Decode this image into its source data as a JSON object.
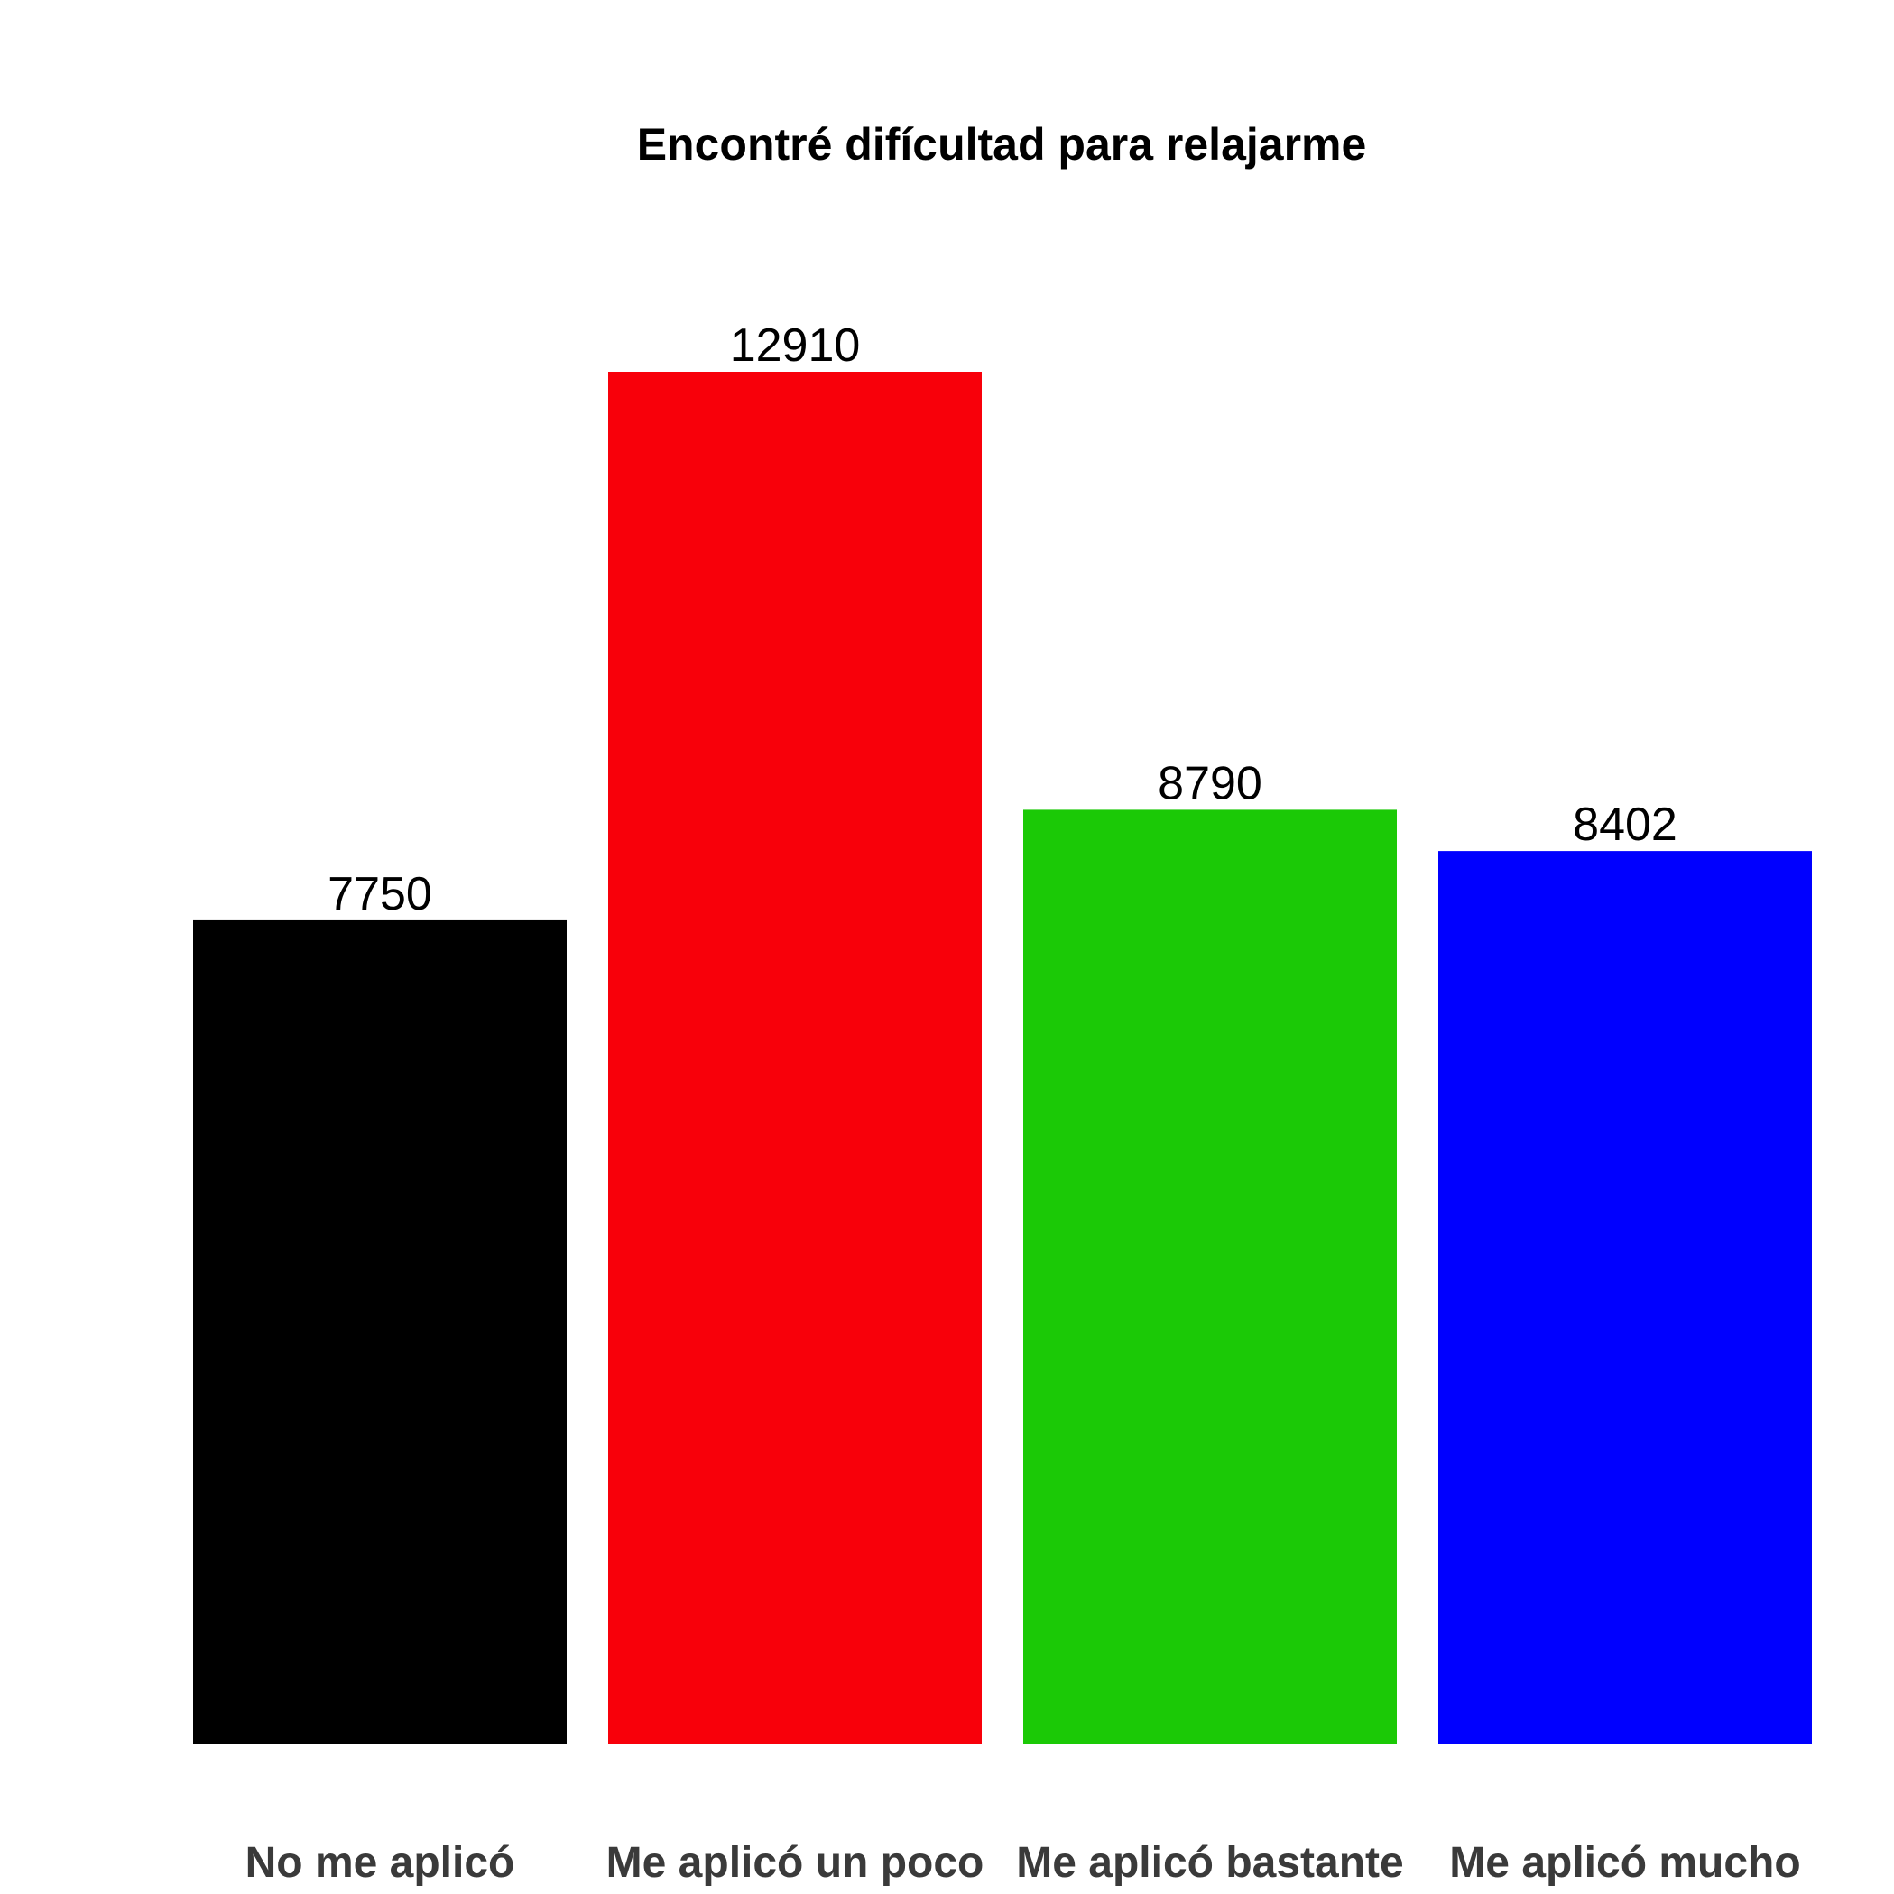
{
  "chart_data": {
    "type": "bar",
    "title": "Encontré difícultad para relajarme",
    "categories": [
      "No me aplicó",
      "Me aplicó un poco",
      "Me aplicó bastante",
      "Me aplicó mucho"
    ],
    "values": [
      7750,
      12910,
      8790,
      8402
    ],
    "value_labels": [
      "7750",
      "12910",
      "8790",
      "8402"
    ],
    "colors": [
      "#000000",
      "#f8000a",
      "#1bc906",
      "#0000ff"
    ],
    "ylim": [
      0,
      12910
    ],
    "grid": false,
    "legend": "none"
  }
}
